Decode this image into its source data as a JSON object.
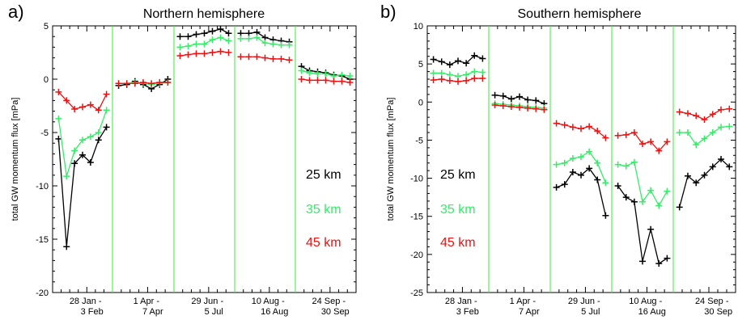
{
  "chart_data": [
    {
      "type": "line",
      "panel_label": "a)",
      "title": "Northern hemisphere",
      "ylabel": "total GW momentum flux [mPa]",
      "ylim": [
        -20,
        5
      ],
      "yticks": [
        5,
        0,
        -5,
        -10,
        -15,
        -20
      ],
      "periods": [
        {
          "line1": "28 Jan -",
          "line2": "3 Feb"
        },
        {
          "line1": "1 Apr -",
          "line2": "7 Apr"
        },
        {
          "line1": "29 Jun -",
          "line2": "5 Jul"
        },
        {
          "line1": "10 Aug -",
          "line2": "16 Aug"
        },
        {
          "line1": "24 Sep -",
          "line2": "30 Sep"
        }
      ],
      "legend": [
        {
          "label": "25 km",
          "color": "#000000"
        },
        {
          "label": "35 km",
          "color": "#33ee66"
        },
        {
          "label": "45 km",
          "color": "#ee1111"
        }
      ],
      "series": [
        {
          "name": "25 km",
          "color": "#000000",
          "groups": [
            [
              -5.6,
              -15.7,
              -7.9,
              -7.1,
              -7.8,
              -5.7,
              -4.5
            ],
            [
              -0.6,
              -0.5,
              -0.2,
              -0.5,
              -0.9,
              -0.5,
              0.0
            ],
            [
              4.0,
              4.0,
              4.2,
              4.3,
              4.5,
              4.7,
              4.3
            ],
            [
              4.3,
              4.3,
              4.4,
              3.9,
              3.7,
              3.6,
              3.5
            ],
            [
              1.2,
              0.8,
              0.7,
              0.6,
              0.4,
              0.3,
              0.0
            ]
          ]
        },
        {
          "name": "35 km",
          "color": "#33ee66",
          "groups": [
            [
              -3.7,
              -9.1,
              -6.7,
              -5.7,
              -5.4,
              -5.0,
              -2.9
            ],
            [
              -0.4,
              -0.4,
              -0.3,
              -0.4,
              -0.5,
              -0.4,
              -0.3
            ],
            [
              3.0,
              3.1,
              3.3,
              3.3,
              3.7,
              3.9,
              3.6
            ],
            [
              3.8,
              3.8,
              3.9,
              3.4,
              3.3,
              3.2,
              3.2
            ],
            [
              0.8,
              0.6,
              0.5,
              0.5,
              0.3,
              0.4,
              0.3
            ]
          ]
        },
        {
          "name": "45 km",
          "color": "#ee1111",
          "groups": [
            [
              -1.2,
              -2.0,
              -2.8,
              -2.6,
              -2.4,
              -2.9,
              -1.4
            ],
            [
              -0.4,
              -0.4,
              -0.4,
              -0.3,
              -0.4,
              -0.3,
              -0.3
            ],
            [
              2.2,
              2.3,
              2.4,
              2.4,
              2.5,
              2.6,
              2.5
            ],
            [
              2.1,
              2.1,
              2.1,
              2.0,
              1.9,
              1.9,
              1.8
            ],
            [
              0.0,
              -0.1,
              -0.1,
              -0.1,
              -0.2,
              -0.2,
              -0.3
            ]
          ]
        }
      ]
    },
    {
      "type": "line",
      "panel_label": "b)",
      "title": "Southern hemisphere",
      "ylabel": "total GW momentum flux [mPa]",
      "ylim": [
        -25,
        10
      ],
      "yticks": [
        10,
        5,
        0,
        -5,
        -10,
        -15,
        -20,
        -25
      ],
      "periods": [
        {
          "line1": "28 Jan -",
          "line2": "3 Feb"
        },
        {
          "line1": "1 Apr -",
          "line2": "7 Apr"
        },
        {
          "line1": "29 Jun -",
          "line2": "5 Jul"
        },
        {
          "line1": "10 Aug -",
          "line2": "16 Aug"
        },
        {
          "line1": "24 Sep -",
          "line2": "30 Sep"
        }
      ],
      "legend": [
        {
          "label": "25 km",
          "color": "#000000"
        },
        {
          "label": "35 km",
          "color": "#33ee66"
        },
        {
          "label": "45 km",
          "color": "#ee1111"
        }
      ],
      "series": [
        {
          "name": "25 km",
          "color": "#000000",
          "groups": [
            [
              5.6,
              5.3,
              4.9,
              5.4,
              5.1,
              6.1,
              5.7
            ],
            [
              0.9,
              0.8,
              0.4,
              0.7,
              0.3,
              0.2,
              -0.2
            ],
            [
              -11.2,
              -10.8,
              -9.2,
              -9.6,
              -8.7,
              -10.2,
              -14.9
            ],
            [
              -11.0,
              -12.5,
              -13.1,
              -20.9,
              -16.7,
              -21.2,
              -20.5
            ],
            [
              -13.8,
              -9.7,
              -10.6,
              -9.6,
              -8.5,
              -7.5,
              -8.5
            ]
          ]
        },
        {
          "name": "35 km",
          "color": "#33ee66",
          "groups": [
            [
              3.8,
              3.8,
              3.6,
              3.4,
              3.6,
              4.0,
              3.9
            ],
            [
              -0.2,
              -0.3,
              -0.4,
              -0.5,
              -0.6,
              -0.7,
              -0.8
            ],
            [
              -8.2,
              -8.0,
              -7.4,
              -7.2,
              -6.5,
              -8.0,
              -10.6
            ],
            [
              -8.2,
              -8.4,
              -7.9,
              -13.1,
              -11.6,
              -13.6,
              -11.7
            ],
            [
              -4.0,
              -4.0,
              -5.6,
              -4.8,
              -4.0,
              -3.3,
              -3.2
            ]
          ]
        },
        {
          "name": "45 km",
          "color": "#ee1111",
          "groups": [
            [
              2.9,
              3.0,
              2.8,
              2.7,
              2.8,
              3.1,
              3.1
            ],
            [
              -0.4,
              -0.5,
              -0.6,
              -0.7,
              -0.8,
              -0.9,
              -1.0
            ],
            [
              -2.8,
              -3.0,
              -3.3,
              -3.5,
              -3.2,
              -3.8,
              -4.7
            ],
            [
              -4.4,
              -4.3,
              -4.0,
              -5.5,
              -5.2,
              -6.4,
              -5.2
            ],
            [
              -1.3,
              -1.5,
              -1.8,
              -2.3,
              -1.6,
              -1.0,
              -0.9
            ]
          ]
        }
      ]
    }
  ]
}
